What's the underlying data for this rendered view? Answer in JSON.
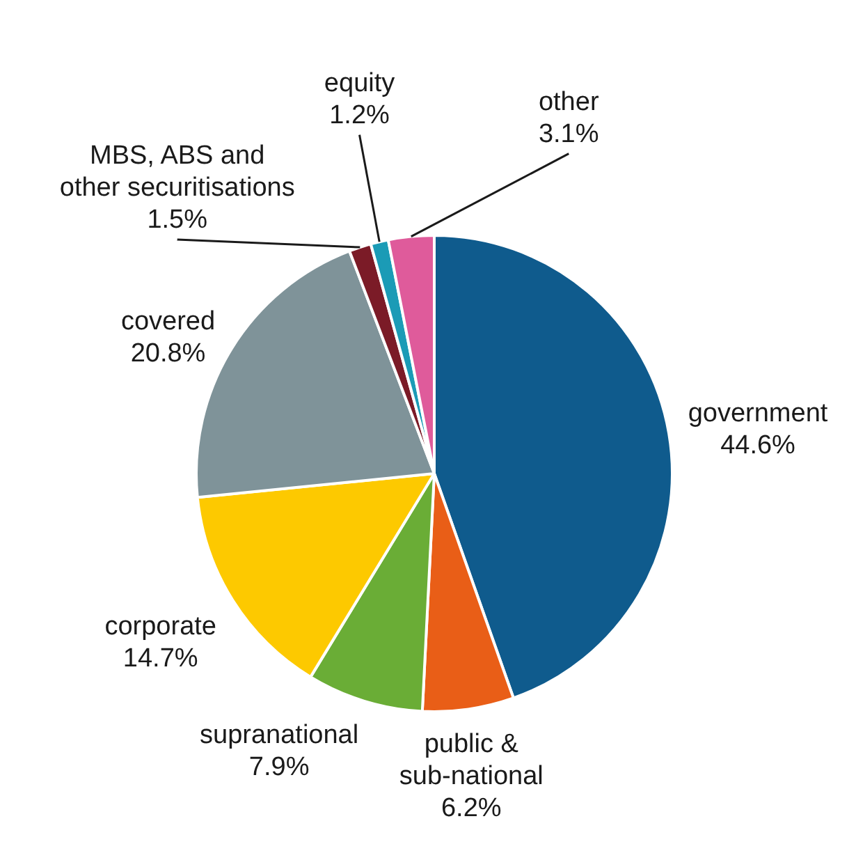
{
  "chart_data": {
    "type": "pie",
    "categories": [
      "government",
      "public &\nsub-national",
      "supranational",
      "corporate",
      "covered",
      "MBS, ABS and\nother securitisations",
      "equity",
      "other"
    ],
    "values": [
      44.6,
      6.2,
      7.9,
      14.7,
      20.8,
      1.5,
      1.2,
      3.1
    ],
    "value_labels": [
      "44.6%",
      "6.2%",
      "7.9%",
      "14.7%",
      "20.8%",
      "1.5%",
      "1.2%",
      "3.1%"
    ],
    "colors": [
      "#0f5b8d",
      "#e95e17",
      "#6aad36",
      "#fdc900",
      "#7f9399",
      "#7b1b27",
      "#1b9bb6",
      "#df5b9b"
    ],
    "legend": false
  }
}
